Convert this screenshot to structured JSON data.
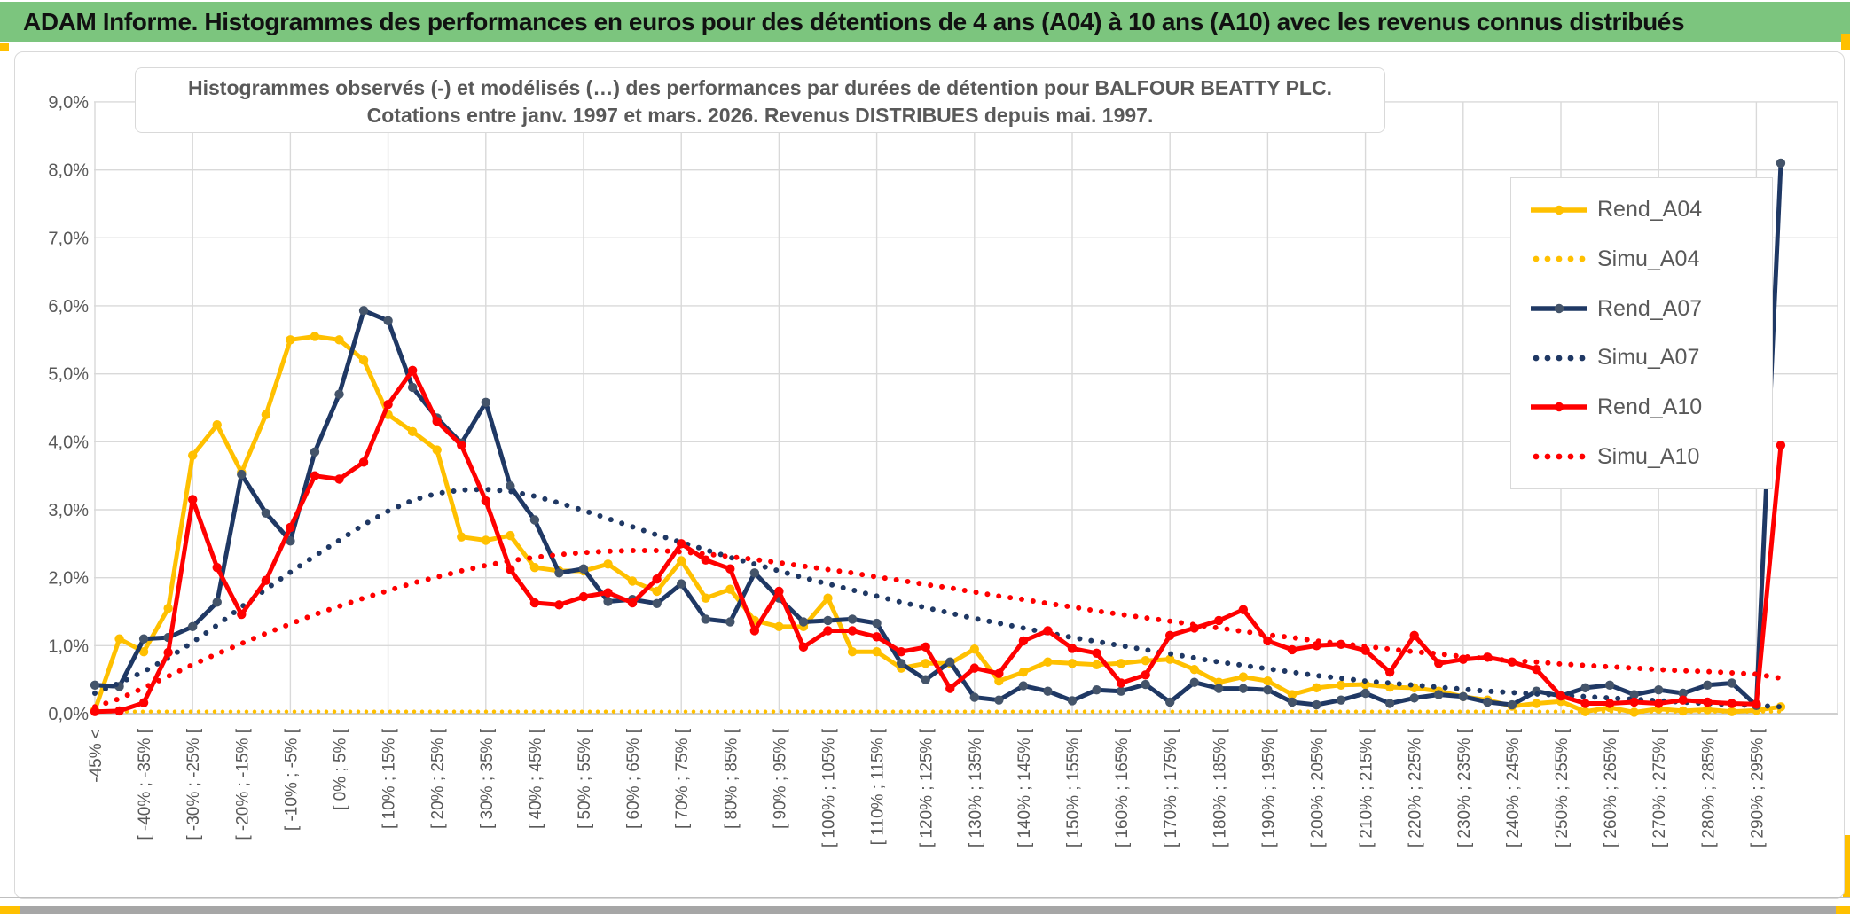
{
  "header": {
    "title": "ADAM Informe. Histogrammes des performances en euros pour des détentions de 4 ans (A04) à 10 ans (A10) avec les revenus connus distribués",
    "bg_color": "#7CC57E",
    "text_color": "#111111"
  },
  "chart": {
    "title_line1": "Histogrammes observés (-) et modélisés (…) des performances par durées de détention pour BALFOUR BEATTY PLC.",
    "title_line2": "Cotations entre janv. 1997 et mars. 2026. Revenus DISTRIBUES depuis mai. 1997.",
    "text_color": "#595959",
    "gridline_color": "#D9D9D9",
    "axis_line_color": "#BFBFBF",
    "accent_color": "#FFC000"
  },
  "chart_data": {
    "type": "line",
    "title": "Histogrammes observés (-) et modélisés (…) des performances par durées de détention pour BALFOUR BEATTY PLC. Cotations entre janv. 1997 et mars. 2026. Revenus DISTRIBUES depuis mai. 1997.",
    "xlabel": "",
    "ylabel": "",
    "ylim": [
      0,
      9
    ],
    "grid": true,
    "legend_position": "right-inside",
    "y_tick_labels": [
      "0,0%",
      "1,0%",
      "2,0%",
      "3,0%",
      "4,0%",
      "5,0%",
      "6,0%",
      "7,0%",
      "8,0%",
      "9,0%"
    ],
    "n_points": 70,
    "x_label_every": 2,
    "x_tick_labels": [
      "-45% <",
      "[ -40% ; -35% [",
      "[ -30% ; -25% [",
      "[ -20% ; -15% [",
      "[ -10% ; -5% [",
      "[ 0% ; 5% [",
      "[ 10% ; 15% [",
      "[ 20% ; 25% [",
      "[ 30% ; 35% [",
      "[ 40% ; 45% [",
      "[ 50% ; 55% [",
      "[ 60% ; 65% [",
      "[ 70% ; 75% [",
      "[ 80% ; 85% [",
      "[ 90% ; 95% [",
      "[ 100% ; 105% [",
      "[ 110% ; 115% [",
      "[ 120% ; 125% [",
      "[ 130% ; 135% [",
      "[ 140% ; 145% [",
      "[ 150% ; 155% [",
      "[ 160% ; 165% [",
      "[ 170% ; 175% [",
      "[ 180% ; 185% [",
      "[ 190% ; 195% [",
      "[ 200% ; 205% [",
      "[ 210% ; 215% [",
      "[ 220% ; 225% [",
      "[ 230% ; 235% [",
      "[ 240% ; 245% [",
      "[ 250% ; 255% [",
      "[ 260% ; 265% [",
      "[ 270% ; 275% [",
      "[ 280% ; 285% [",
      "[ 290% ; 295% ["
    ],
    "series": [
      {
        "name": "Rend_A04",
        "color": "#FFC000",
        "marker_color": "#FFC000",
        "style": "solid",
        "values": [
          0.05,
          1.1,
          0.91,
          1.55,
          3.8,
          4.25,
          3.55,
          4.4,
          5.5,
          5.55,
          5.5,
          5.2,
          4.4,
          4.15,
          3.88,
          2.6,
          2.55,
          2.62,
          2.15,
          2.1,
          2.1,
          2.2,
          1.95,
          1.8,
          2.25,
          1.7,
          1.83,
          1.37,
          1.28,
          1.28,
          1.7,
          0.91,
          0.91,
          0.67,
          0.74,
          0.74,
          0.95,
          0.48,
          0.61,
          0.76,
          0.74,
          0.72,
          0.74,
          0.78,
          0.8,
          0.65,
          0.46,
          0.54,
          0.48,
          0.28,
          0.38,
          0.42,
          0.43,
          0.39,
          0.38,
          0.33,
          0.25,
          0.2,
          0.11,
          0.15,
          0.18,
          0.03,
          0.09,
          0.02,
          0.07,
          0.04,
          0.06,
          0.03,
          0.05,
          0.1
        ]
      },
      {
        "name": "Simu_A04",
        "color": "#FFC000",
        "style": "dotted",
        "values": [
          0.03,
          0.03,
          0.03,
          0.03,
          0.03,
          0.03,
          0.03,
          0.03,
          0.03,
          0.03,
          0.03,
          0.03,
          0.03,
          0.03,
          0.03,
          0.03,
          0.03,
          0.03,
          0.03,
          0.03,
          0.03,
          0.03,
          0.03,
          0.03,
          0.03,
          0.03,
          0.03,
          0.03,
          0.03,
          0.03,
          0.03,
          0.03,
          0.03,
          0.03,
          0.03,
          0.03,
          0.03,
          0.03,
          0.03,
          0.03,
          0.03,
          0.03,
          0.03,
          0.03,
          0.03,
          0.03,
          0.03,
          0.03,
          0.03,
          0.03,
          0.03,
          0.03,
          0.03,
          0.03,
          0.03,
          0.03,
          0.03,
          0.03,
          0.03,
          0.03,
          0.03,
          0.03,
          0.03,
          0.03,
          0.03,
          0.03,
          0.03,
          0.03,
          0.03,
          0.03
        ]
      },
      {
        "name": "Rend_A07",
        "color": "#1F3864",
        "marker_color": "#44546A",
        "style": "solid",
        "values": [
          0.42,
          0.4,
          1.1,
          1.12,
          1.28,
          1.64,
          3.52,
          2.95,
          2.54,
          3.85,
          4.7,
          5.93,
          5.78,
          4.8,
          4.35,
          3.98,
          4.58,
          3.35,
          2.85,
          2.07,
          2.13,
          1.65,
          1.68,
          1.62,
          1.91,
          1.39,
          1.35,
          2.07,
          1.7,
          1.35,
          1.37,
          1.39,
          1.33,
          0.74,
          0.5,
          0.76,
          0.24,
          0.2,
          0.41,
          0.33,
          0.19,
          0.35,
          0.33,
          0.43,
          0.17,
          0.46,
          0.37,
          0.37,
          0.35,
          0.17,
          0.13,
          0.2,
          0.3,
          0.15,
          0.23,
          0.28,
          0.25,
          0.17,
          0.13,
          0.33,
          0.26,
          0.38,
          0.42,
          0.28,
          0.35,
          0.3,
          0.42,
          0.45,
          0.12,
          8.1
        ]
      },
      {
        "name": "Simu_A07",
        "color": "#1F3864",
        "style": "dotted",
        "values": [
          0.3,
          0.45,
          0.62,
          0.82,
          1.05,
          1.3,
          1.57,
          1.83,
          2.08,
          2.32,
          2.55,
          2.78,
          2.98,
          3.14,
          3.24,
          3.29,
          3.3,
          3.27,
          3.2,
          3.1,
          2.99,
          2.87,
          2.75,
          2.63,
          2.52,
          2.41,
          2.3,
          2.2,
          2.1,
          2.0,
          1.91,
          1.82,
          1.73,
          1.64,
          1.56,
          1.48,
          1.4,
          1.33,
          1.26,
          1.19,
          1.12,
          1.06,
          1.0,
          0.94,
          0.88,
          0.82,
          0.76,
          0.71,
          0.66,
          0.61,
          0.56,
          0.52,
          0.48,
          0.45,
          0.42,
          0.39,
          0.36,
          0.33,
          0.31,
          0.29,
          0.27,
          0.25,
          0.23,
          0.21,
          0.19,
          0.17,
          0.15,
          0.13,
          0.12,
          0.1
        ]
      },
      {
        "name": "Rend_A10",
        "color": "#FF0000",
        "marker_color": "#FF0000",
        "style": "solid",
        "values": [
          0.03,
          0.04,
          0.16,
          0.9,
          3.15,
          2.15,
          1.46,
          1.96,
          2.74,
          3.5,
          3.45,
          3.7,
          4.55,
          5.05,
          4.3,
          3.95,
          3.13,
          2.12,
          1.63,
          1.6,
          1.72,
          1.78,
          1.63,
          1.98,
          2.5,
          2.26,
          2.13,
          1.22,
          1.8,
          0.98,
          1.22,
          1.22,
          1.13,
          0.91,
          0.98,
          0.37,
          0.67,
          0.59,
          1.07,
          1.22,
          0.96,
          0.89,
          0.45,
          0.57,
          1.15,
          1.26,
          1.37,
          1.53,
          1.07,
          0.94,
          1.0,
          1.02,
          0.93,
          0.61,
          1.15,
          0.74,
          0.8,
          0.83,
          0.76,
          0.65,
          0.26,
          0.15,
          0.15,
          0.17,
          0.15,
          0.2,
          0.17,
          0.15,
          0.14,
          3.95
        ]
      },
      {
        "name": "Simu_A10",
        "color": "#FF0000",
        "style": "dotted",
        "values": [
          0.1,
          0.22,
          0.38,
          0.55,
          0.72,
          0.88,
          1.03,
          1.18,
          1.32,
          1.46,
          1.58,
          1.7,
          1.81,
          1.92,
          2.01,
          2.1,
          2.18,
          2.25,
          2.3,
          2.34,
          2.37,
          2.39,
          2.4,
          2.4,
          2.38,
          2.35,
          2.31,
          2.27,
          2.22,
          2.17,
          2.12,
          2.07,
          2.01,
          1.96,
          1.9,
          1.85,
          1.79,
          1.73,
          1.68,
          1.62,
          1.57,
          1.51,
          1.46,
          1.41,
          1.36,
          1.31,
          1.26,
          1.21,
          1.16,
          1.12,
          1.07,
          1.03,
          0.99,
          0.95,
          0.91,
          0.88,
          0.84,
          0.81,
          0.78,
          0.76,
          0.73,
          0.71,
          0.69,
          0.67,
          0.65,
          0.63,
          0.62,
          0.6,
          0.58,
          0.52
        ]
      }
    ]
  }
}
